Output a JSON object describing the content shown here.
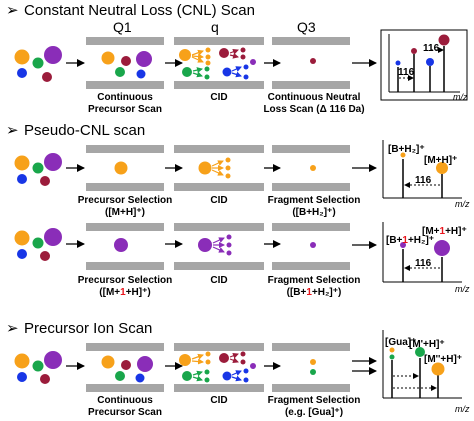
{
  "colors": {
    "orange": "#f7a11a",
    "green": "#19a64b",
    "blue": "#1836e6",
    "purple": "#8a2db8",
    "crimson": "#9b1c3b",
    "rod": "#a6a6a6",
    "highlight": "#e8141b"
  },
  "bullet_glyph": "➢",
  "columns": {
    "q1": "Q1",
    "q": "q",
    "q3": "Q3"
  },
  "sections": {
    "cnl": {
      "title": "Constant Neutral Loss (CNL) Scan",
      "labels": {
        "s1_l1": "Continuous",
        "s1_l2": "Precursor Scan",
        "s2": "CID",
        "s3_l1": "Continuous Neutral",
        "s3_l2": "Loss Scan (Δ 116 Da)"
      },
      "spectrum": {
        "loss": "116",
        "xlabel": "m/z"
      }
    },
    "pseudo": {
      "title": "Pseudo-CNL scan",
      "row1": {
        "labels": {
          "s1_l1": "Precursor Selection",
          "s1_l2": "([M+H]⁺)",
          "s2": "CID",
          "s3_l1": "Fragment Selection",
          "s3_l2": "([B+H₂]⁺)"
        },
        "spectrum": {
          "frag": "[B+H₂]⁺",
          "prec": "[M+H]⁺",
          "loss": "116",
          "xlabel": "m/z"
        }
      },
      "row2": {
        "labels": {
          "s1_l1": "Precursor Selection",
          "s1_l2_a": "([M+",
          "s1_l2_b": "1",
          "s1_l2_c": "+H]⁺)",
          "s2": "CID",
          "s3_l1": "Fragment Selection",
          "s3_l2_a": "([B+",
          "s3_l2_b": "1",
          "s3_l2_c": "+H₂]⁺)"
        },
        "spectrum": {
          "frag_a": "[B+",
          "frag_b": "1",
          "frag_c": "+H₂]⁺",
          "prec_a": "[M+",
          "prec_b": "1",
          "prec_c": "+H]⁺",
          "loss": "116",
          "xlabel": "m/z"
        }
      }
    },
    "pis": {
      "title": "Precursor Ion Scan",
      "labels": {
        "s1_l1": "Continuous",
        "s1_l2": "Precursor Scan",
        "s2": "CID",
        "s3_l1": "Fragment Selection",
        "s3_l2": "(e.g. [Gua]⁺)"
      },
      "spectrum": {
        "p1": "[Gua]⁺",
        "p2": "[M'+H]⁺",
        "p3": "[M''+H]⁺",
        "xlabel": "m/z"
      }
    }
  }
}
